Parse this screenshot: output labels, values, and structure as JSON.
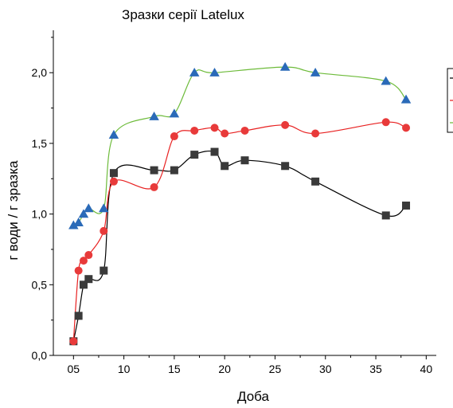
{
  "chart_data": {
    "type": "scatter",
    "title": "Зразки серії Latelux",
    "xlabel": "Доба",
    "ylabel": "г води / г зразка",
    "xlim": [
      3,
      41
    ],
    "ylim": [
      0,
      2.3
    ],
    "x_ticks": [
      5,
      10,
      15,
      20,
      25,
      30,
      35,
      40
    ],
    "x_tick_labels": [
      "05",
      "10",
      "15",
      "20",
      "25",
      "30",
      "35",
      "40"
    ],
    "y_ticks": [
      0,
      0.5,
      1.0,
      1.5,
      2.0
    ],
    "y_tick_labels": [
      "0,0",
      "0,5",
      "1,0",
      "1,5",
      "2,0"
    ],
    "grid": false,
    "legend_position": "right (partially cut off)",
    "series": [
      {
        "marker": "square",
        "color": "#3a3a3a",
        "line_color": "#000000",
        "x": [
          5,
          5.5,
          6,
          6.5,
          8,
          9,
          13,
          15,
          17,
          19,
          20,
          22,
          26,
          29,
          36,
          38
        ],
        "y": [
          0.1,
          0.28,
          0.5,
          0.54,
          0.6,
          1.29,
          1.31,
          1.31,
          1.42,
          1.44,
          1.34,
          1.38,
          1.34,
          1.23,
          0.99,
          1.06
        ]
      },
      {
        "marker": "circle",
        "color": "#e83a3a",
        "line_color": "#e82020",
        "x": [
          5,
          5.5,
          6,
          6.5,
          8,
          9,
          13,
          15,
          17,
          19,
          20,
          22,
          26,
          29,
          36,
          38
        ],
        "y": [
          0.1,
          0.6,
          0.67,
          0.71,
          0.88,
          1.23,
          1.19,
          1.55,
          1.59,
          1.61,
          1.57,
          1.59,
          1.63,
          1.57,
          1.65,
          1.61
        ]
      },
      {
        "marker": "triangle",
        "color": "#2a6ab8",
        "line_color": "#6dbb3a",
        "x": [
          5,
          5.5,
          6,
          6.5,
          8,
          9,
          13,
          15,
          17,
          19,
          26,
          29,
          36,
          38
        ],
        "y": [
          0.92,
          0.94,
          1.0,
          1.04,
          1.04,
          1.56,
          1.69,
          1.71,
          2.0,
          2.0,
          2.04,
          2.0,
          1.94,
          1.81
        ]
      }
    ]
  }
}
